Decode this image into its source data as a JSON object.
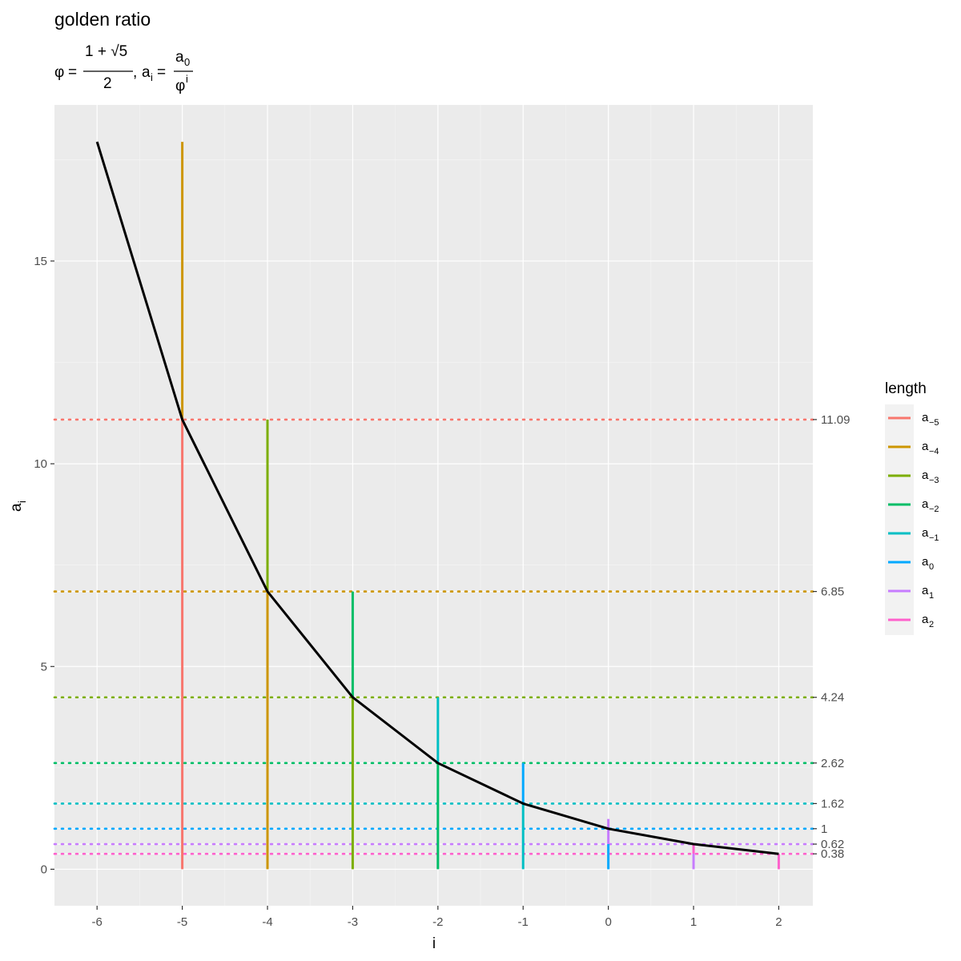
{
  "colors": {
    "panel_bg": "#ebebeb",
    "grid_major": "#ffffff",
    "curve": "#000000",
    "legend_bg": "#f2f2f2"
  },
  "chart_data": {
    "type": "line",
    "title": "golden ratio",
    "subtitle": {
      "phi_symbol": "φ",
      "equals": "=",
      "numerator": "1 + √5",
      "denominator": "2",
      "separator": ",",
      "a_base": "a",
      "a_sub_i": "i",
      "a_equals": "=",
      "frac_num_base": "a",
      "frac_num_sub": "0",
      "frac_den_base": "φ",
      "frac_den_sup": "i"
    },
    "xlabel": "i",
    "ylabel": {
      "base": "a",
      "sub": "i"
    },
    "xlim": [
      -6.5,
      2.4
    ],
    "ylim": [
      -0.9,
      18.85
    ],
    "x_ticks": [
      -6,
      -5,
      -4,
      -3,
      -2,
      -1,
      0,
      1,
      2
    ],
    "x_tick_labels": [
      "-6",
      "-5",
      "-4",
      "-3",
      "-2",
      "-1",
      "0",
      "1",
      "2"
    ],
    "y_ticks": [
      0,
      5,
      10,
      15
    ],
    "y_tick_labels": [
      "0",
      "5",
      "10",
      "15"
    ],
    "curve": {
      "x": [
        -6,
        -5,
        -4,
        -3,
        -2,
        -1,
        0,
        1,
        2
      ],
      "y": [
        17.94,
        11.09,
        6.85,
        4.24,
        2.62,
        1.62,
        1.0,
        0.62,
        0.38
      ]
    },
    "segments": [
      {
        "name": "a-5",
        "x": -5,
        "y_start": 0,
        "y_end": 11.09,
        "color": "#f8766d"
      },
      {
        "name": "a-4",
        "x": -5,
        "y_start": 11.09,
        "y_end": 17.94,
        "color": "#cd9600"
      },
      {
        "name": "a-4",
        "x": -4,
        "y_start": 0,
        "y_end": 6.85,
        "color": "#cd9600"
      },
      {
        "name": "a-3",
        "x": -4,
        "y_start": 6.85,
        "y_end": 11.09,
        "color": "#7cae00"
      },
      {
        "name": "a-3",
        "x": -3,
        "y_start": 0,
        "y_end": 4.24,
        "color": "#7cae00"
      },
      {
        "name": "a-2",
        "x": -3,
        "y_start": 4.24,
        "y_end": 6.85,
        "color": "#00be67"
      },
      {
        "name": "a-2",
        "x": -2,
        "y_start": 0,
        "y_end": 2.62,
        "color": "#00be67"
      },
      {
        "name": "a-1",
        "x": -2,
        "y_start": 2.62,
        "y_end": 4.24,
        "color": "#00bfc4"
      },
      {
        "name": "a-1",
        "x": -1,
        "y_start": 0,
        "y_end": 1.62,
        "color": "#00bfc4"
      },
      {
        "name": "a0",
        "x": -1,
        "y_start": 1.62,
        "y_end": 2.62,
        "color": "#00a9ff"
      },
      {
        "name": "a0",
        "x": 0,
        "y_start": 0,
        "y_end": 0.62,
        "color": "#00a9ff"
      },
      {
        "name": "a1",
        "x": 0,
        "y_start": 0.62,
        "y_end": 1.24,
        "color": "#c77cff"
      },
      {
        "name": "a1",
        "x": 1,
        "y_start": 0,
        "y_end": 0.62,
        "color": "#c77cff"
      },
      {
        "name": "a2",
        "x": 1,
        "y_start": 0.38,
        "y_end": 0.62,
        "color": "#ff61cc"
      },
      {
        "name": "a2",
        "x": 2,
        "y_start": 0,
        "y_end": 0.38,
        "color": "#ff61cc"
      }
    ],
    "hlines": [
      {
        "y": 11.09,
        "label": "11.09",
        "color": "#f8766d"
      },
      {
        "y": 6.85,
        "label": "6.85",
        "color": "#cd9600"
      },
      {
        "y": 4.24,
        "label": "4.24",
        "color": "#7cae00"
      },
      {
        "y": 2.62,
        "label": "2.62",
        "color": "#00be67"
      },
      {
        "y": 1.62,
        "label": "1.62",
        "color": "#00bfc4"
      },
      {
        "y": 1.0,
        "label": "1",
        "color": "#00a9ff"
      },
      {
        "y": 0.62,
        "label": "0.62",
        "color": "#c77cff"
      },
      {
        "y": 0.38,
        "label": "0.38",
        "color": "#ff61cc"
      }
    ],
    "legend": {
      "title": "length",
      "placement": "right",
      "entries": [
        {
          "base": "a",
          "sub": "−5",
          "color": "#f8766d"
        },
        {
          "base": "a",
          "sub": "−4",
          "color": "#cd9600"
        },
        {
          "base": "a",
          "sub": "−3",
          "color": "#7cae00"
        },
        {
          "base": "a",
          "sub": "−2",
          "color": "#00be67"
        },
        {
          "base": "a",
          "sub": "−1",
          "color": "#00bfc4"
        },
        {
          "base": "a",
          "sub": "0",
          "color": "#00a9ff"
        },
        {
          "base": "a",
          "sub": "1",
          "color": "#c77cff"
        },
        {
          "base": "a",
          "sub": "2",
          "color": "#ff61cc"
        }
      ]
    }
  }
}
